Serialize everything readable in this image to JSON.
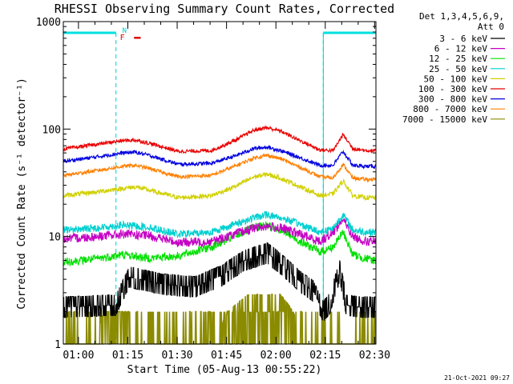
{
  "chart_data": {
    "type": "line",
    "title": "RHESSI Observing Summary Count Rates, Corrected",
    "xlabel": "Start Time (05-Aug-13 00:55:22)",
    "ylabel": "Corrected Count Rate (s⁻¹ detector⁻¹)",
    "yscale": "log",
    "ylim": [
      1,
      1000
    ],
    "ytick_labels": [
      "1000",
      "100",
      "10",
      "1"
    ],
    "ytick_values": [
      1000,
      100,
      10,
      1
    ],
    "xlim_minutes": [
      0,
      95
    ],
    "xtick_labels": [
      "01:00",
      "01:15",
      "01:30",
      "01:45",
      "02:00",
      "02:15",
      "02:30"
    ],
    "xtick_minutes": [
      4.6,
      19.6,
      34.6,
      49.6,
      64.6,
      79.6,
      94.6
    ],
    "legend_header": [
      "Det 1,3,4,5,6,9,",
      "Att 0"
    ],
    "legend_position": "outside-right",
    "timestamp": "21-Oct-2021 09:27",
    "annotations": {
      "night_flag": "N",
      "flare_flag": "F"
    },
    "night_intervals_minutes": [
      [
        0,
        16
      ],
      [
        79,
        95
      ]
    ],
    "flare_interval_minutes": [
      21.5,
      23.5
    ],
    "series": [
      {
        "name": "3 - 6 keV",
        "color": "#000000",
        "x": [
          0,
          16,
          20,
          30,
          40,
          48,
          55,
          62,
          66,
          72,
          76,
          79,
          81,
          84,
          86,
          90,
          95
        ],
        "y": [
          2.2,
          2.3,
          4.2,
          3.6,
          3.4,
          4.3,
          6.0,
          7.0,
          5.6,
          3.8,
          3.1,
          2.0,
          2.4,
          4.8,
          2.3,
          2.2,
          2.2
        ]
      },
      {
        "name": "6 - 12 keV",
        "color": "#c400c4",
        "x": [
          0,
          10,
          18,
          26,
          35,
          45,
          52,
          58,
          62,
          66,
          72,
          78,
          82,
          85,
          88,
          92,
          95
        ],
        "y": [
          9.5,
          10.0,
          10.5,
          10.2,
          8.8,
          9.0,
          10.5,
          12.0,
          12.5,
          12.0,
          10.5,
          9.0,
          11.0,
          14.5,
          10.0,
          9.0,
          9.0
        ]
      },
      {
        "name": "12 - 25 keV",
        "color": "#00e000",
        "x": [
          0,
          10,
          18,
          26,
          35,
          45,
          52,
          58,
          62,
          66,
          72,
          78,
          82,
          85,
          88,
          92,
          95
        ],
        "y": [
          5.8,
          6.2,
          6.8,
          6.3,
          6.6,
          8.0,
          10.0,
          12.2,
          12.8,
          11.5,
          9.0,
          7.2,
          8.0,
          11.0,
          6.8,
          6.2,
          6.0
        ]
      },
      {
        "name": "25 - 50 keV",
        "color": "#00d0d0",
        "x": [
          0,
          10,
          18,
          26,
          35,
          45,
          52,
          58,
          62,
          66,
          72,
          78,
          82,
          85,
          88,
          92,
          95
        ],
        "y": [
          11.5,
          12.0,
          12.8,
          12.2,
          10.5,
          11.0,
          13.0,
          15.0,
          16.0,
          15.0,
          13.0,
          11.0,
          12.0,
          16.0,
          11.5,
          11.0,
          11.0
        ]
      },
      {
        "name": "50 - 100 keV",
        "color": "#d0d000",
        "x": [
          0,
          10,
          18,
          22,
          26,
          35,
          45,
          52,
          58,
          62,
          66,
          72,
          78,
          82,
          85,
          88,
          92,
          95
        ],
        "y": [
          24,
          26,
          28,
          29,
          27,
          23,
          24,
          29,
          36,
          38,
          35,
          29,
          24,
          25,
          33,
          24,
          23,
          23
        ]
      },
      {
        "name": "100 - 300 keV",
        "color": "#e80000",
        "x": [
          0,
          10,
          18,
          22,
          26,
          35,
          45,
          52,
          58,
          62,
          66,
          72,
          78,
          82,
          85,
          88,
          92,
          95
        ],
        "y": [
          65,
          72,
          78,
          79,
          74,
          62,
          63,
          78,
          98,
          103,
          96,
          78,
          64,
          63,
          89,
          66,
          63,
          63
        ]
      },
      {
        "name": "300 - 800 keV",
        "color": "#0000e0",
        "x": [
          0,
          10,
          18,
          22,
          26,
          35,
          45,
          52,
          58,
          62,
          66,
          72,
          78,
          82,
          85,
          88,
          92,
          95
        ],
        "y": [
          50,
          55,
          60,
          61,
          57,
          47,
          48,
          56,
          66,
          68,
          63,
          54,
          46,
          46,
          62,
          46,
          45,
          45
        ]
      },
      {
        "name": "800 - 7000 keV",
        "color": "#ff8000",
        "x": [
          0,
          10,
          18,
          22,
          26,
          35,
          45,
          52,
          58,
          62,
          66,
          72,
          78,
          82,
          85,
          88,
          92,
          95
        ],
        "y": [
          37,
          41,
          45,
          46,
          43,
          36,
          37,
          45,
          54,
          57,
          53,
          44,
          36,
          35,
          47,
          35,
          34,
          34
        ]
      },
      {
        "name": "7000 - 15000 keV",
        "color": "#8b8b00",
        "x": [
          0,
          10,
          12,
          19,
          20,
          45,
          50,
          56,
          66,
          70,
          73,
          95
        ],
        "y": [
          1.0,
          1.0,
          2.0,
          2.0,
          1.0,
          1.0,
          2.0,
          2.9,
          2.9,
          2.0,
          1.0,
          1.0
        ]
      }
    ]
  }
}
